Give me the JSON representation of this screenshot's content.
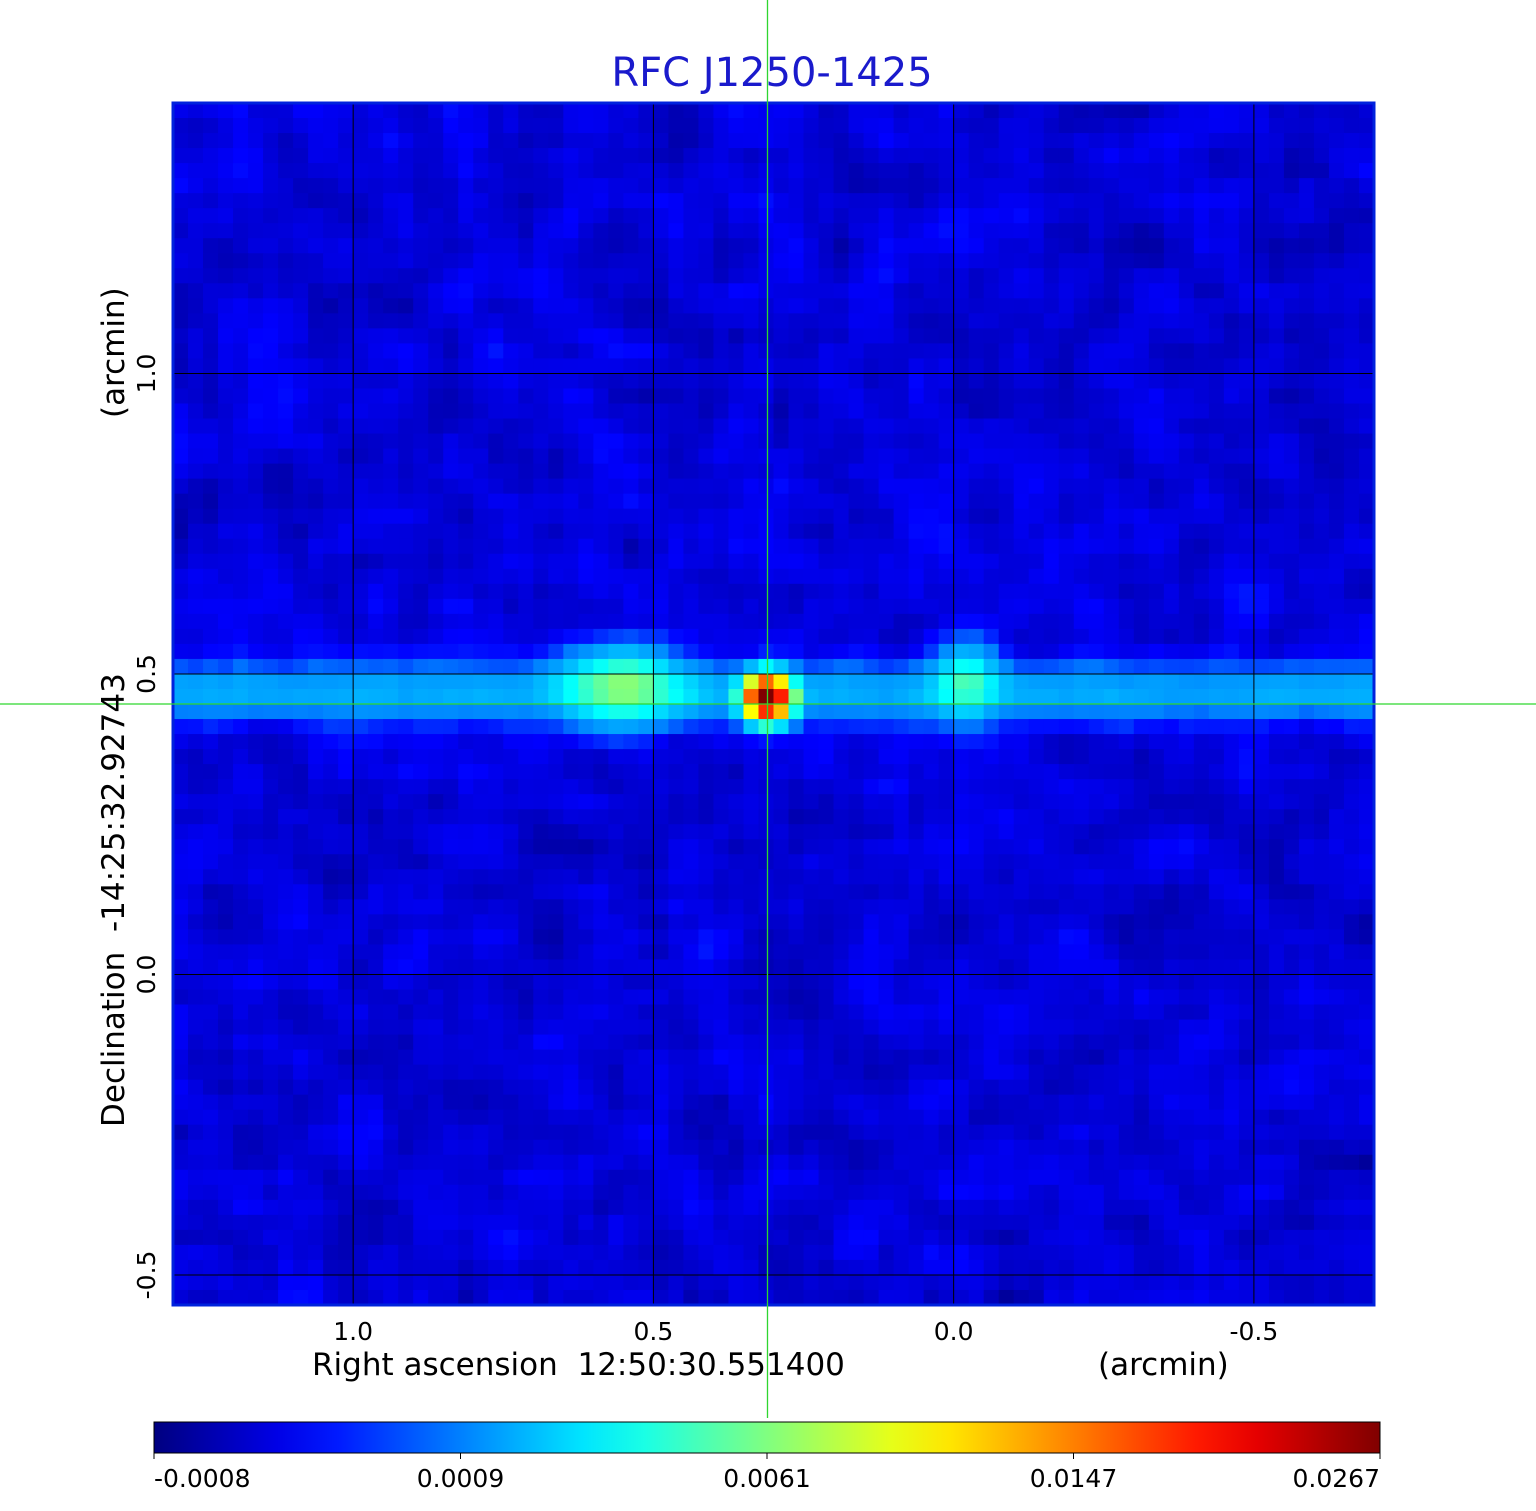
{
  "chart_data": {
    "type": "heatmap",
    "title": "RFC J1250-1425",
    "colors": {
      "title": "#1a1acc",
      "crosshair": "#2fd62f",
      "grid": "#000000",
      "frame": "#0022dd"
    },
    "colormap": "jet",
    "xlabel": "Right ascension  12:50:30.551400",
    "xunit": "(arcmin)",
    "ylabel": "Declination  -14:25:32.92743",
    "yunit": "(arcmin)",
    "xlim": [
      1.3,
      -0.7
    ],
    "ylim": [
      -0.55,
      1.45
    ],
    "x_ticks": [
      1.0,
      0.5,
      0.0,
      -0.5
    ],
    "x_tick_labels": [
      "1.0",
      "0.5",
      "0.0",
      "-0.5"
    ],
    "y_ticks": [
      -0.5,
      0.0,
      0.5,
      1.0
    ],
    "y_tick_labels": [
      "-0.5",
      "0.0",
      "0.5",
      "1.0"
    ],
    "grid": true,
    "crosshair": {
      "x": 0.31,
      "y": 0.45
    },
    "colorbar": {
      "tick_labels": [
        "-0.0008",
        "0.0009",
        "0.0061",
        "0.0147",
        "0.0267"
      ]
    },
    "features": [
      {
        "name": "core",
        "x": 0.31,
        "y": 0.46,
        "peak": 0.0267
      },
      {
        "name": "west-lobe",
        "x": 0.55,
        "y": 0.48,
        "peak": 0.005
      },
      {
        "name": "east-lobe",
        "x": -0.02,
        "y": 0.49,
        "peak": 0.0035
      },
      {
        "name": "horizontal-band",
        "y": 0.47,
        "level": 0.002
      }
    ]
  }
}
